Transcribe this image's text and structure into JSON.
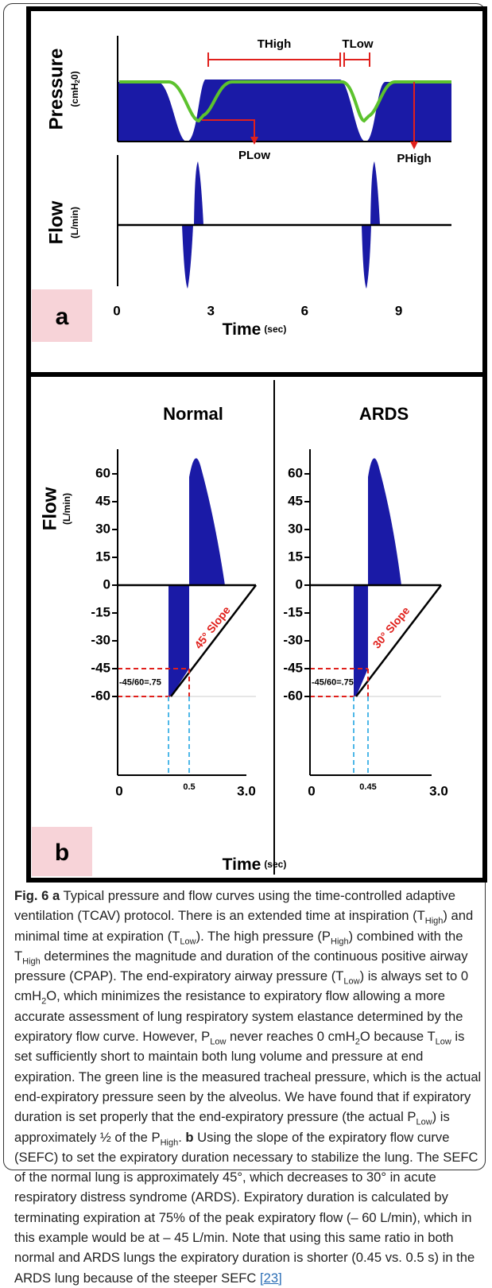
{
  "panel_a": {
    "label": "a",
    "pressure": {
      "axis_label": "Pressure",
      "unit": [
        "(cmH",
        "2",
        "0)"
      ],
      "annotations": {
        "t_high": "THigh",
        "t_low": "TLow",
        "p_low": "PLow",
        "p_high": "PHigh"
      }
    },
    "flow": {
      "axis_label": "Flow",
      "unit": "(L/min)"
    },
    "time": {
      "label": "Time",
      "unit": "(sec)",
      "ticks": [
        0,
        3,
        6,
        9
      ]
    }
  },
  "panel_b": {
    "label": "b",
    "flow": {
      "axis_label": "Flow",
      "unit": "(L/min)"
    },
    "yticks": [
      60,
      45,
      30,
      15,
      0,
      -15,
      -30,
      -45,
      -60
    ],
    "normal": {
      "title": "Normal",
      "xticks": [
        0,
        0.5,
        {
          "value": 3,
          "label": "3.0"
        }
      ],
      "ratio": "-45/60=.75",
      "slope": "45° Slope"
    },
    "ards": {
      "title": "ARDS",
      "xticks": [
        0,
        0.45,
        {
          "value": 3,
          "label": "3.0"
        }
      ],
      "ratio": "-45/60=.75",
      "slope": "30° Slope"
    },
    "time": {
      "label": "Time",
      "unit": "(sec)"
    }
  },
  "caption": {
    "runs": [
      {
        "text": "Fig. 6 a",
        "style": "bold"
      },
      {
        "text": " Typical pressure and flow curves using the time-controlled adaptive ventilation (TCAV) protocol. There is an extended time at inspiration (T"
      },
      {
        "text": "High",
        "style": "sub"
      },
      {
        "text": ") and minimal time at expiration (T"
      },
      {
        "text": "Low",
        "style": "sub"
      },
      {
        "text": "). The high pressure (P"
      },
      {
        "text": "High",
        "style": "sub"
      },
      {
        "text": ") combined with the T"
      },
      {
        "text": "High",
        "style": "sub"
      },
      {
        "text": " determines the magnitude and duration of the continuous positive airway pressure (CPAP). The end-expiratory airway pressure (T"
      },
      {
        "text": "Low",
        "style": "sub"
      },
      {
        "text": ") is always set to 0 cmH"
      },
      {
        "text": "2",
        "style": "sub"
      },
      {
        "text": "O, which minimizes the resistance to expiratory flow allowing a more accurate assessment of lung respiratory system elastance determined by the expiratory flow curve. However, P"
      },
      {
        "text": "Low",
        "style": "sub"
      },
      {
        "text": " never reaches 0 cmH"
      },
      {
        "text": "2",
        "style": "sub"
      },
      {
        "text": "O because T"
      },
      {
        "text": "Low",
        "style": "sub"
      },
      {
        "text": " is set sufficiently short to maintain both lung volume and pressure at end expiration. The green line is the measured tracheal pressure, which is the actual end-expiratory pressure seen by the alveolus. We have found that if expiratory duration is set properly that the end-expiratory pressure (the actual P"
      },
      {
        "text": "Low",
        "style": "sub"
      },
      {
        "text": ") is approximately ½ of the P"
      },
      {
        "text": "High",
        "style": "sub"
      },
      {
        "text": ". "
      },
      {
        "text": "b",
        "style": "bold"
      },
      {
        "text": " Using the slope of the expiratory flow curve (SEFC) to set the expiratory duration necessary to stabilize the lung. The SEFC of the normal lung is approximately 45°, which decreases to 30° in acute respiratory distress syndrome (ARDS). Expiratory duration is calculated by terminating expiration at 75% of the peak expiratory flow (– 60 L/min), which in this example would be at – 45 L/min. Note that using this same ratio in both normal and ARDS lungs the expiratory duration is shorter (0.45 vs. 0.5 s) in the ARDS lung because of the steeper SEFC "
      },
      {
        "text": "[23]",
        "style": "link"
      }
    ]
  }
}
